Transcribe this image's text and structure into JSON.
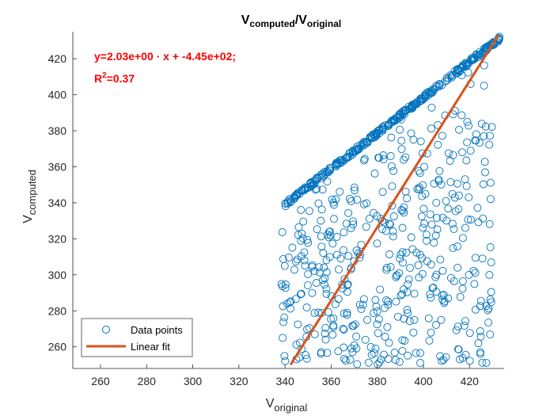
{
  "chart_data": {
    "type": "scatter",
    "title": {
      "main": "V",
      "main_sub": "computed",
      "sep": "/V",
      "sep_sub": "original"
    },
    "xlabel": {
      "main": "V",
      "sub": "original"
    },
    "ylabel": {
      "main": "V",
      "sub": "computed"
    },
    "xlim": [
      248,
      435
    ],
    "ylim": [
      248,
      435
    ],
    "xticks": [
      260,
      280,
      300,
      320,
      340,
      360,
      380,
      400,
      420
    ],
    "yticks": [
      260,
      280,
      300,
      320,
      340,
      360,
      380,
      400,
      420
    ],
    "grid": false,
    "legend_position": "bottom-left",
    "annotation": {
      "equation": "y=2.03e+00 · x + -4.45e+02;",
      "r2_prefix": "R",
      "r2_sup": "2",
      "r2_suffix": "=0.37",
      "color": "#ff0000"
    },
    "series": [
      {
        "name": "Data points",
        "marker": "circle-open",
        "color": "#0072bd",
        "upper_band": {
          "x_from": 340,
          "x_to": 433,
          "count": 300,
          "approx_relation": "y ≈ 339 + 0.992·(x − 340)"
        },
        "lower_cloud": {
          "x_from": 338,
          "x_to": 430,
          "count": 450,
          "y_from": 250,
          "approx_upper": "y ≤ 339 + 0.992·(x − 340)"
        }
      },
      {
        "name": "Linear fit",
        "type": "line",
        "color": "#d95319",
        "slope": 2.03,
        "intercept": -445,
        "x_from": 342.4,
        "x_to": 432.5
      }
    ]
  }
}
